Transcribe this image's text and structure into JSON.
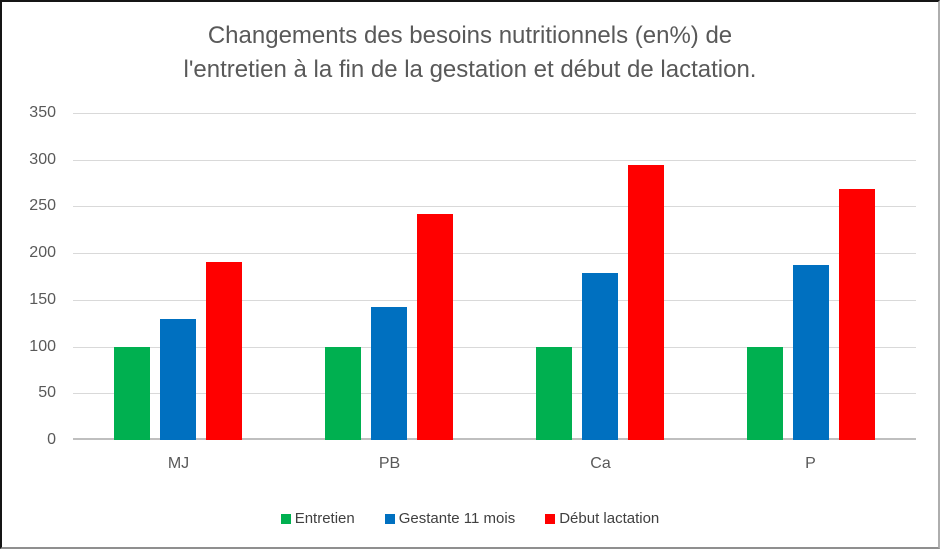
{
  "title": {
    "line1": "Changements des besoins nutritionnels (en%) de",
    "line2": "l'entretien à la fin de la gestation et début de lactation."
  },
  "chart_data": {
    "type": "bar",
    "title": "Changements des besoins nutritionnels (en%) de l'entretien à la fin de la gestation et début de lactation.",
    "categories": [
      "MJ",
      "PB",
      "Ca",
      "P"
    ],
    "series": [
      {
        "name": "Entretien",
        "color": "#00B050",
        "values": [
          100,
          100,
          100,
          100
        ]
      },
      {
        "name": "Gestante 11 mois",
        "color": "#0070C0",
        "values": [
          129,
          142,
          179,
          187
        ]
      },
      {
        "name": "Début lactation",
        "color": "#FF0000",
        "values": [
          190,
          242,
          294,
          269
        ]
      }
    ],
    "xlabel": "",
    "ylabel": "",
    "ylim": [
      0,
      350
    ],
    "ytick_step": 50,
    "ytick_labels": [
      "0",
      "50",
      "100",
      "150",
      "200",
      "250",
      "300",
      "350"
    ],
    "grid": true,
    "legend_position": "bottom"
  },
  "style": {
    "text_color": "#595959",
    "gridline_color": "#D9D9D9",
    "axis_line_color": "#BFBFBF",
    "background": "#FFFFFF"
  }
}
